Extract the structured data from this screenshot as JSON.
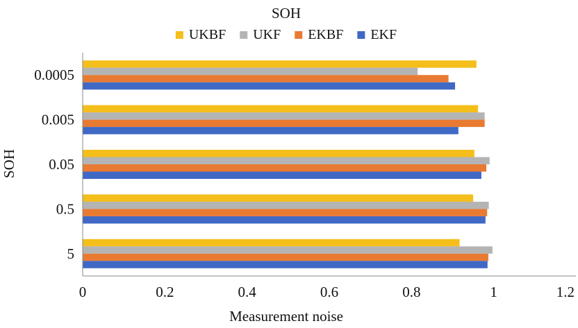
{
  "chart_data": {
    "type": "bar",
    "orientation": "horizontal",
    "title": "SOH",
    "xlabel": "Measurement noise",
    "ylabel": "SOH",
    "categories": [
      "0.0005",
      "0.005",
      "0.05",
      "0.5",
      "5"
    ],
    "x_ticks": [
      "0",
      "0.2",
      "0.4",
      "0.6",
      "0.8",
      "1",
      "1.2"
    ],
    "xlim": [
      0,
      1.2
    ],
    "grid": false,
    "legend_position": "top",
    "series": [
      {
        "name": "UKBF",
        "color": "#F4BE1B",
        "values": [
          0.958,
          0.962,
          0.953,
          0.95,
          0.917
        ]
      },
      {
        "name": "UKF",
        "color": "#B4B4B4",
        "values": [
          0.815,
          0.978,
          0.99,
          0.988,
          0.997
        ]
      },
      {
        "name": "EKBF",
        "color": "#E97A32",
        "values": [
          0.89,
          0.978,
          0.982,
          0.984,
          0.987
        ]
      },
      {
        "name": "EKF",
        "color": "#3F69C5",
        "values": [
          0.906,
          0.914,
          0.97,
          0.98,
          0.985
        ]
      }
    ]
  }
}
